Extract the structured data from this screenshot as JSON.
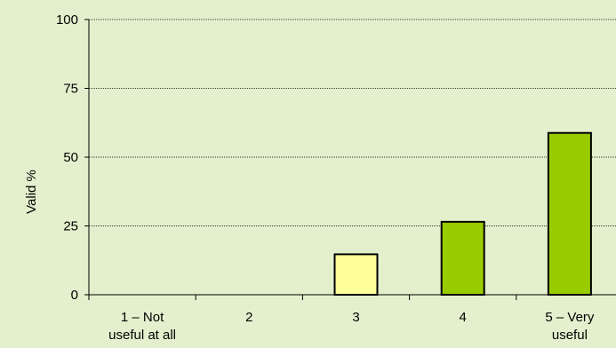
{
  "chart_data": {
    "type": "bar",
    "title": "",
    "xlabel": "",
    "ylabel": "Valid %",
    "ylim": [
      0,
      100
    ],
    "yticks": [
      0,
      25,
      50,
      75,
      100
    ],
    "grid": true,
    "categories": [
      [
        "1 – Not",
        "useful at all"
      ],
      [
        "2"
      ],
      [
        "3"
      ],
      [
        "4"
      ],
      [
        "5 – Very",
        "useful"
      ]
    ],
    "values": [
      0,
      0,
      14.7,
      26.5,
      58.8
    ],
    "bar_colors": [
      "#99cc00",
      "#99cc00",
      "#ffff99",
      "#99cc00",
      "#99cc00"
    ]
  },
  "colors": {
    "background": "#e4f0cd",
    "axis": "#000000",
    "grid": "#000000"
  }
}
